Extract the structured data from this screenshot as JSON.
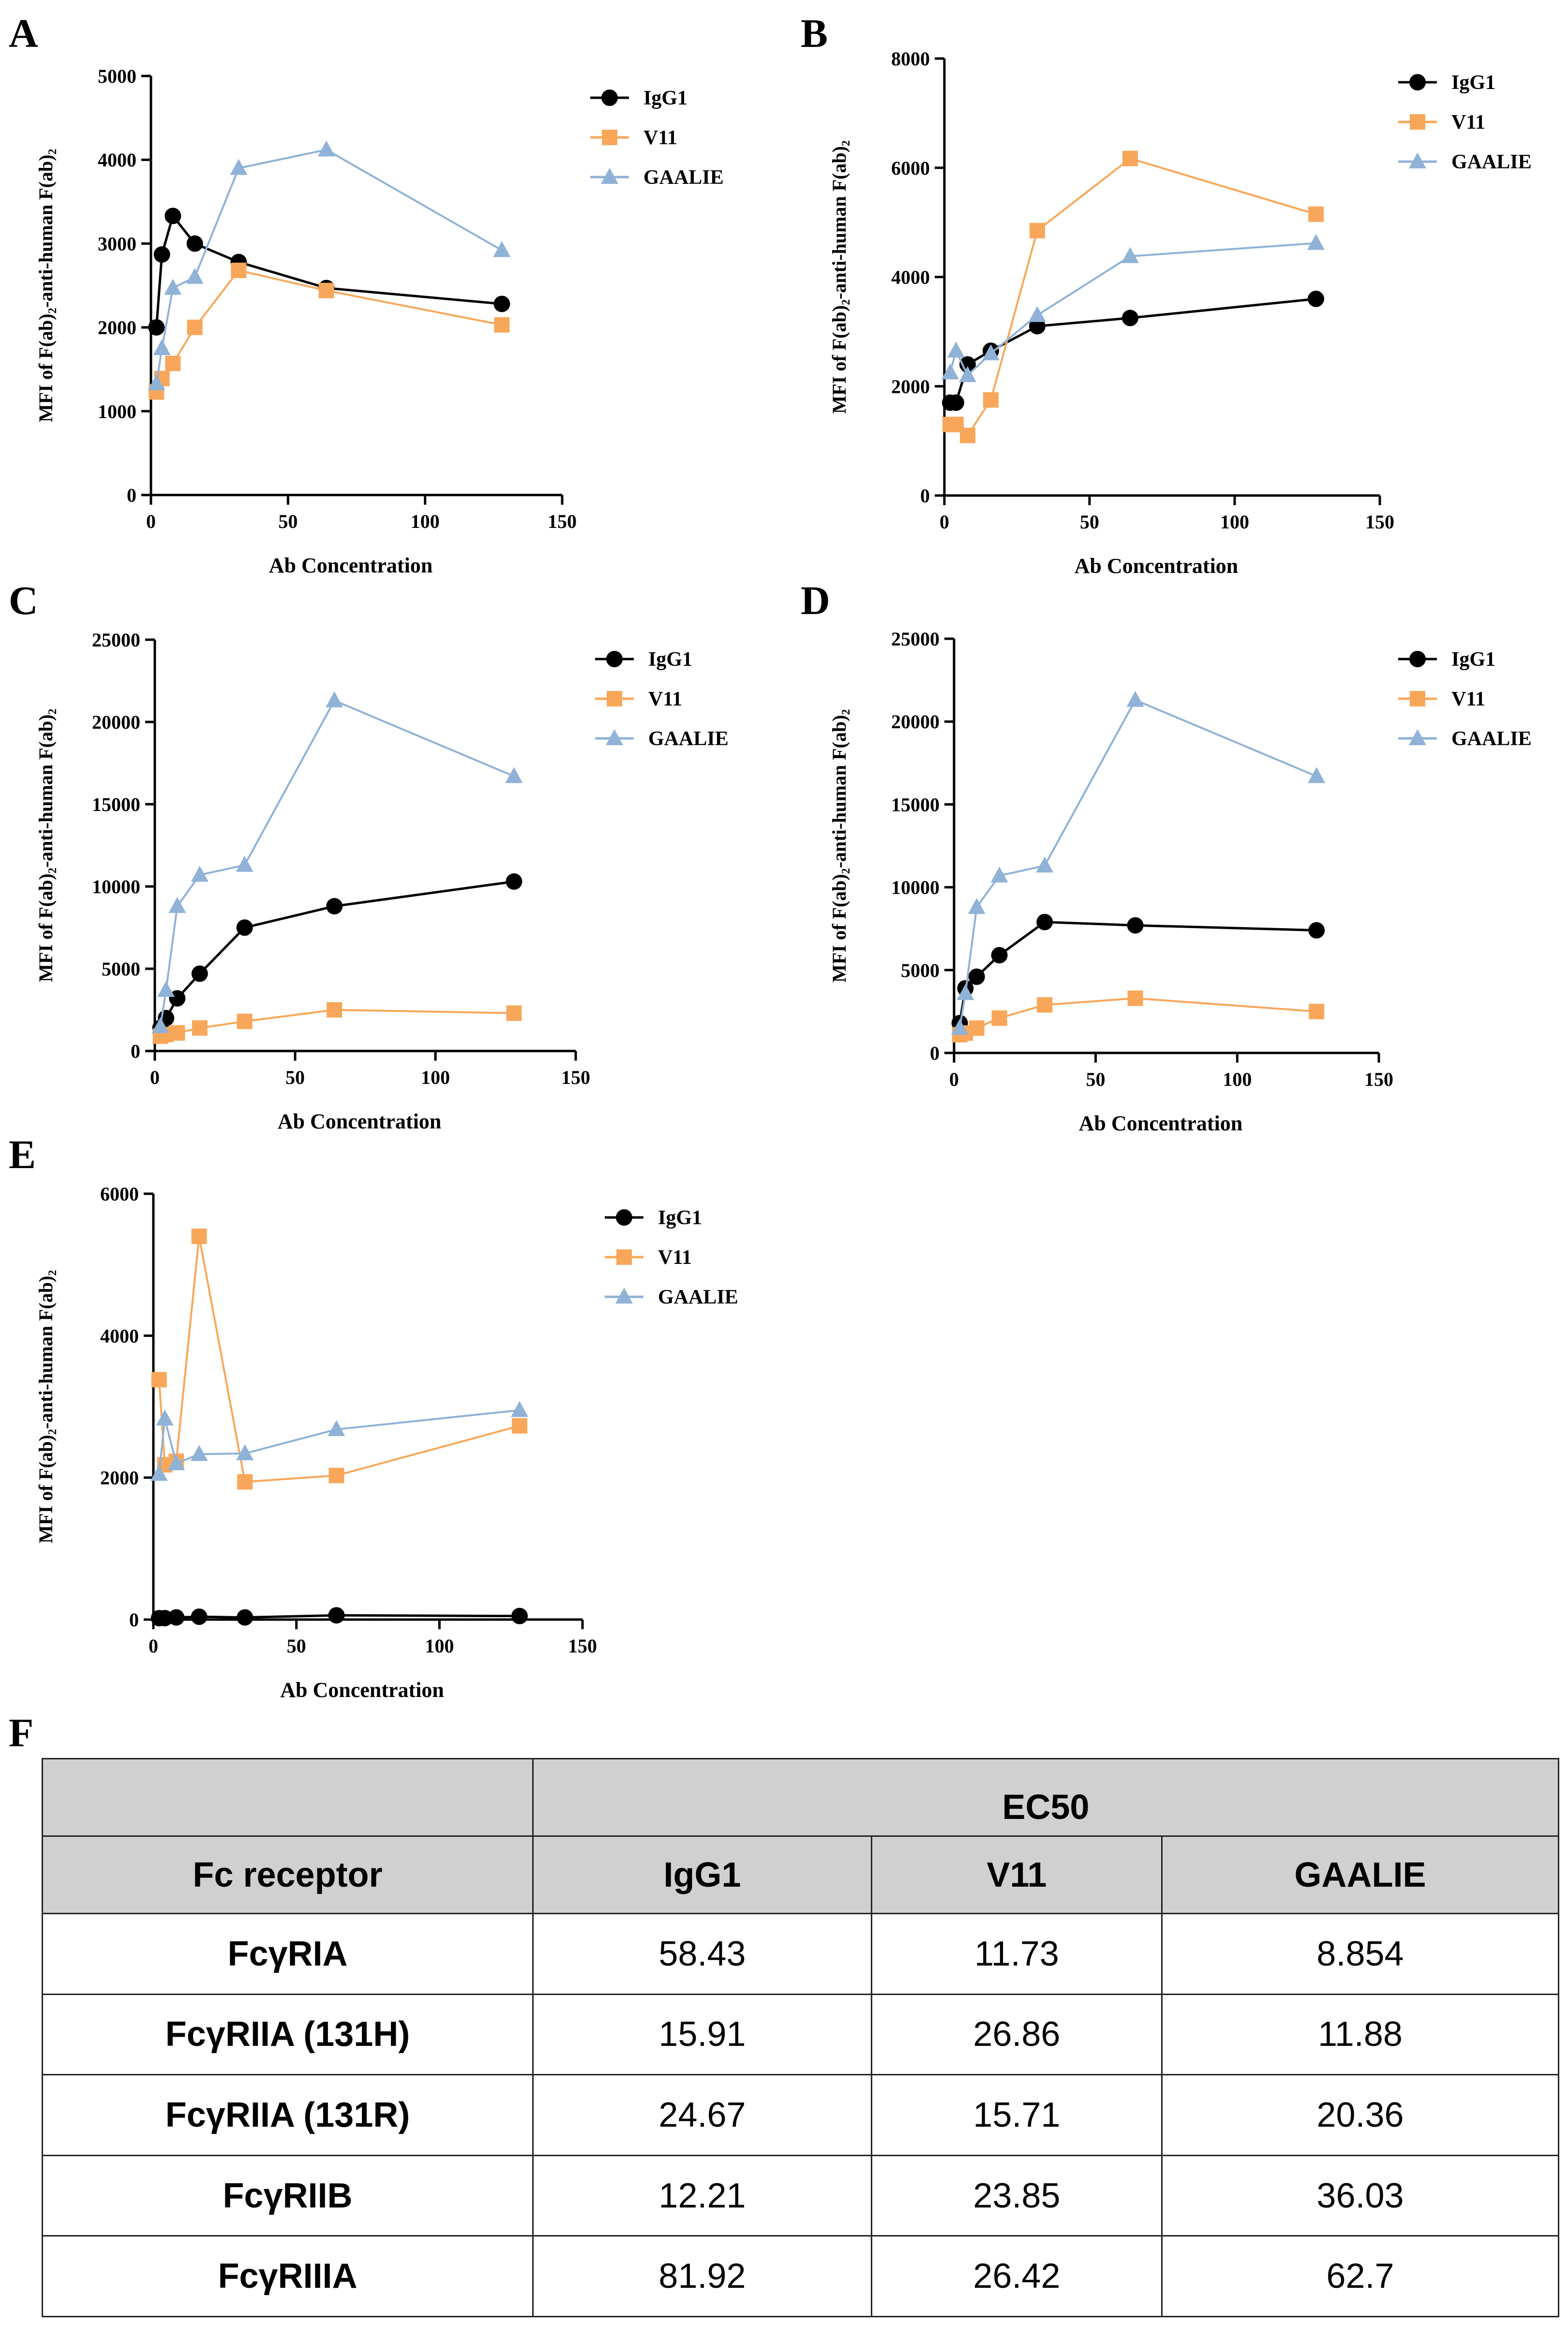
{
  "colors": {
    "IgG1": "#000000",
    "V11": "#f8a75a",
    "GAALIE": "#8fb2d6"
  },
  "chart_data": [
    {
      "panel": "A",
      "type": "line",
      "xlabel": "Ab Concentration",
      "ylabel": "MFI of F(ab)₂-anti-human F(ab)₂",
      "xlim": [
        0,
        150
      ],
      "ylim": [
        0,
        5000
      ],
      "xticks": [
        0,
        50,
        100,
        150
      ],
      "yticks": [
        0,
        1000,
        2000,
        3000,
        4000,
        5000
      ],
      "series": [
        {
          "name": "IgG1",
          "marker": "circle",
          "x": [
            2,
            4,
            8,
            16,
            32,
            64,
            128
          ],
          "y": [
            2000,
            2870,
            3330,
            3000,
            2780,
            2470,
            2280
          ]
        },
        {
          "name": "V11",
          "marker": "square",
          "x": [
            2,
            4,
            8,
            16,
            32,
            64,
            128
          ],
          "y": [
            1230,
            1390,
            1570,
            2000,
            2680,
            2440,
            2030
          ]
        },
        {
          "name": "GAALIE",
          "marker": "triangle",
          "x": [
            2,
            4,
            8,
            16,
            32,
            64,
            128
          ],
          "y": [
            1330,
            1750,
            2470,
            2600,
            3900,
            4120,
            2920
          ]
        }
      ]
    },
    {
      "panel": "B",
      "type": "line",
      "xlabel": "Ab Concentration",
      "ylabel": "MFI of F(ab)₂-anti-human F(ab)₂",
      "xlim": [
        0,
        150
      ],
      "ylim": [
        0,
        8000
      ],
      "xticks": [
        0,
        50,
        100,
        150
      ],
      "yticks": [
        0,
        2000,
        4000,
        6000,
        8000
      ],
      "series": [
        {
          "name": "IgG1",
          "marker": "circle",
          "x": [
            2,
            4,
            8,
            16,
            32,
            64,
            128
          ],
          "y": [
            1700,
            1700,
            2400,
            2650,
            3100,
            3250,
            3600
          ]
        },
        {
          "name": "V11",
          "marker": "square",
          "x": [
            2,
            4,
            8,
            16,
            32,
            64,
            128
          ],
          "y": [
            1300,
            1300,
            1100,
            1750,
            4850,
            6170,
            5150
          ]
        },
        {
          "name": "GAALIE",
          "marker": "triangle",
          "x": [
            2,
            4,
            8,
            16,
            32,
            64,
            128
          ],
          "y": [
            2250,
            2650,
            2200,
            2600,
            3300,
            4380,
            4620
          ]
        }
      ]
    },
    {
      "panel": "C",
      "type": "line",
      "xlabel": "Ab Concentration",
      "ylabel": "MFI of F(ab)₂-anti-human F(ab)₂",
      "xlim": [
        0,
        150
      ],
      "ylim": [
        0,
        25000
      ],
      "xticks": [
        0,
        50,
        100,
        150
      ],
      "yticks": [
        0,
        5000,
        10000,
        15000,
        20000,
        25000
      ],
      "series": [
        {
          "name": "IgG1",
          "marker": "circle",
          "x": [
            2,
            4,
            8,
            16,
            32,
            64,
            128
          ],
          "y": [
            1400,
            2000,
            3200,
            4700,
            7500,
            8800,
            10300
          ]
        },
        {
          "name": "V11",
          "marker": "square",
          "x": [
            2,
            4,
            8,
            16,
            32,
            64,
            128
          ],
          "y": [
            900,
            1000,
            1100,
            1400,
            1800,
            2500,
            2300
          ]
        },
        {
          "name": "GAALIE",
          "marker": "triangle",
          "x": [
            2,
            4,
            8,
            16,
            32,
            64,
            128
          ],
          "y": [
            1500,
            3700,
            8800,
            10700,
            11300,
            21300,
            16700
          ]
        }
      ]
    },
    {
      "panel": "D",
      "type": "line",
      "xlabel": "Ab Concentration",
      "ylabel": "MFI of F(ab)₂-anti-human F(ab)₂",
      "xlim": [
        0,
        150
      ],
      "ylim": [
        0,
        25000
      ],
      "xticks": [
        0,
        50,
        100,
        150
      ],
      "yticks": [
        0,
        5000,
        10000,
        15000,
        20000,
        25000
      ],
      "series": [
        {
          "name": "IgG1",
          "marker": "circle",
          "x": [
            2,
            4,
            8,
            16,
            32,
            64,
            128
          ],
          "y": [
            1800,
            3900,
            4600,
            5900,
            7900,
            7700,
            7400
          ]
        },
        {
          "name": "V11",
          "marker": "square",
          "x": [
            2,
            4,
            8,
            16,
            32,
            64,
            128
          ],
          "y": [
            1100,
            1200,
            1500,
            2100,
            2900,
            3300,
            2500
          ]
        },
        {
          "name": "GAALIE",
          "marker": "triangle",
          "x": [
            2,
            4,
            8,
            16,
            32,
            64,
            128
          ],
          "y": [
            1500,
            3600,
            8800,
            10700,
            11300,
            21300,
            16700
          ]
        }
      ]
    },
    {
      "panel": "E",
      "type": "line",
      "xlabel": "Ab Concentration",
      "ylabel": "MFI of F(ab)₂-anti-human F(ab)₂",
      "xlim": [
        0,
        150
      ],
      "ylim": [
        0,
        6000
      ],
      "xticks": [
        0,
        50,
        100,
        150
      ],
      "yticks": [
        0,
        2000,
        4000,
        6000
      ],
      "series": [
        {
          "name": "IgG1",
          "marker": "circle",
          "x": [
            2,
            4,
            8,
            16,
            32,
            64,
            128
          ],
          "y": [
            20,
            20,
            30,
            40,
            30,
            60,
            50
          ]
        },
        {
          "name": "V11",
          "marker": "square",
          "x": [
            2,
            4,
            8,
            16,
            32,
            64,
            128
          ],
          "y": [
            3380,
            2180,
            2230,
            5400,
            1940,
            2030,
            2730
          ]
        },
        {
          "name": "GAALIE",
          "marker": "triangle",
          "x": [
            2,
            4,
            8,
            16,
            32,
            64,
            128
          ],
          "y": [
            2050,
            2830,
            2200,
            2330,
            2340,
            2680,
            2950
          ]
        }
      ]
    },
    {
      "panel": "F",
      "type": "table",
      "group_header": "EC50",
      "columns": [
        "Fc receptor",
        "IgG1",
        "V11",
        "GAALIE"
      ],
      "rows": [
        [
          "FcγRIA",
          "58.43",
          "11.73",
          "8.854"
        ],
        [
          "FcγRIIA (131H)",
          "15.91",
          "26.86",
          "11.88"
        ],
        [
          "FcγRIIA (131R)",
          "24.67",
          "15.71",
          "20.36"
        ],
        [
          "FcγRIIB",
          "12.21",
          "23.85",
          "36.03"
        ],
        [
          "FcγRIIIA",
          "81.92",
          "26.42",
          "62.7"
        ]
      ]
    }
  ]
}
